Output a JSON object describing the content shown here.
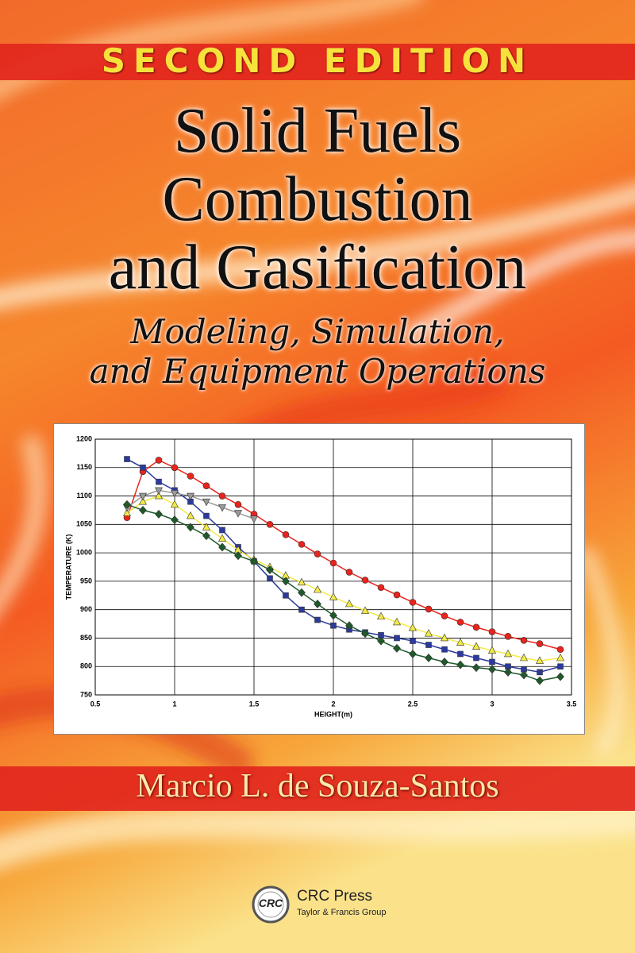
{
  "cover": {
    "edition": "Second Edition",
    "title_lines": [
      "Solid Fuels",
      "Combustion",
      "and Gasification"
    ],
    "subtitle_lines": [
      "Modeling, Simulation,",
      "and Equipment Operations"
    ],
    "author": "Marcio L. de Souza-Santos",
    "logo_text": "CRC",
    "publisher": "CRC Press",
    "publisher_group": "Taylor & Francis Group"
  },
  "chart_data": {
    "type": "line",
    "xlabel": "HEIGHT(m)",
    "ylabel": "TEMPERATURE (K)",
    "x": [
      0.7,
      0.8,
      0.9,
      1.0,
      1.1,
      1.2,
      1.3,
      1.4,
      1.5,
      1.6,
      1.7,
      1.8,
      1.9,
      2.0,
      2.1,
      2.2,
      2.3,
      2.4,
      2.5,
      2.6,
      2.7,
      2.8,
      2.9,
      3.0,
      3.1,
      3.2,
      3.3,
      3.43
    ],
    "series": [
      {
        "color": "#e8241c",
        "marker": "circle",
        "values": [
          1062,
          1143,
          1163,
          1150,
          1135,
          1118,
          1100,
          1085,
          1068,
          1050,
          1032,
          1015,
          998,
          982,
          966,
          952,
          939,
          926,
          913,
          901,
          889,
          878,
          869,
          861,
          853,
          846,
          840,
          830
        ]
      },
      {
        "color": "#2b3a9c",
        "marker": "square",
        "values": [
          1165,
          1150,
          1125,
          1110,
          1090,
          1065,
          1040,
          1010,
          985,
          955,
          925,
          900,
          882,
          872,
          865,
          860,
          855,
          850,
          845,
          838,
          830,
          822,
          815,
          808,
          800,
          795,
          790,
          800
        ]
      },
      {
        "color": "#f2ea4a",
        "marker": "triangle-up",
        "values": [
          1070,
          1090,
          1100,
          1085,
          1065,
          1045,
          1025,
          1005,
          988,
          975,
          960,
          948,
          935,
          922,
          910,
          898,
          888,
          878,
          868,
          858,
          850,
          842,
          835,
          828,
          822,
          815,
          810,
          815
        ]
      },
      {
        "color": "#9a9a9a",
        "marker": "triangle-down",
        "values": [
          1080,
          1100,
          1110,
          1105,
          1100,
          1090,
          1080,
          1070,
          1060,
          null,
          null,
          null,
          null,
          null,
          null,
          null,
          null,
          null,
          null,
          null,
          null,
          null,
          null,
          null,
          null,
          null,
          null,
          null
        ]
      },
      {
        "color": "#1f5a2a",
        "marker": "diamond",
        "values": [
          1085,
          1075,
          1068,
          1058,
          1045,
          1030,
          1010,
          995,
          985,
          970,
          950,
          930,
          910,
          890,
          872,
          858,
          845,
          832,
          822,
          815,
          808,
          803,
          798,
          795,
          790,
          785,
          775,
          782
        ]
      }
    ],
    "xlim": [
      0.5,
      3.5
    ],
    "xticks": [
      0.5,
      1,
      1.5,
      2,
      2.5,
      3,
      3.5
    ],
    "ylim": [
      750,
      1200
    ],
    "yticks": [
      750,
      800,
      850,
      900,
      950,
      1000,
      1050,
      1100,
      1150,
      1200
    ],
    "grid": true
  }
}
